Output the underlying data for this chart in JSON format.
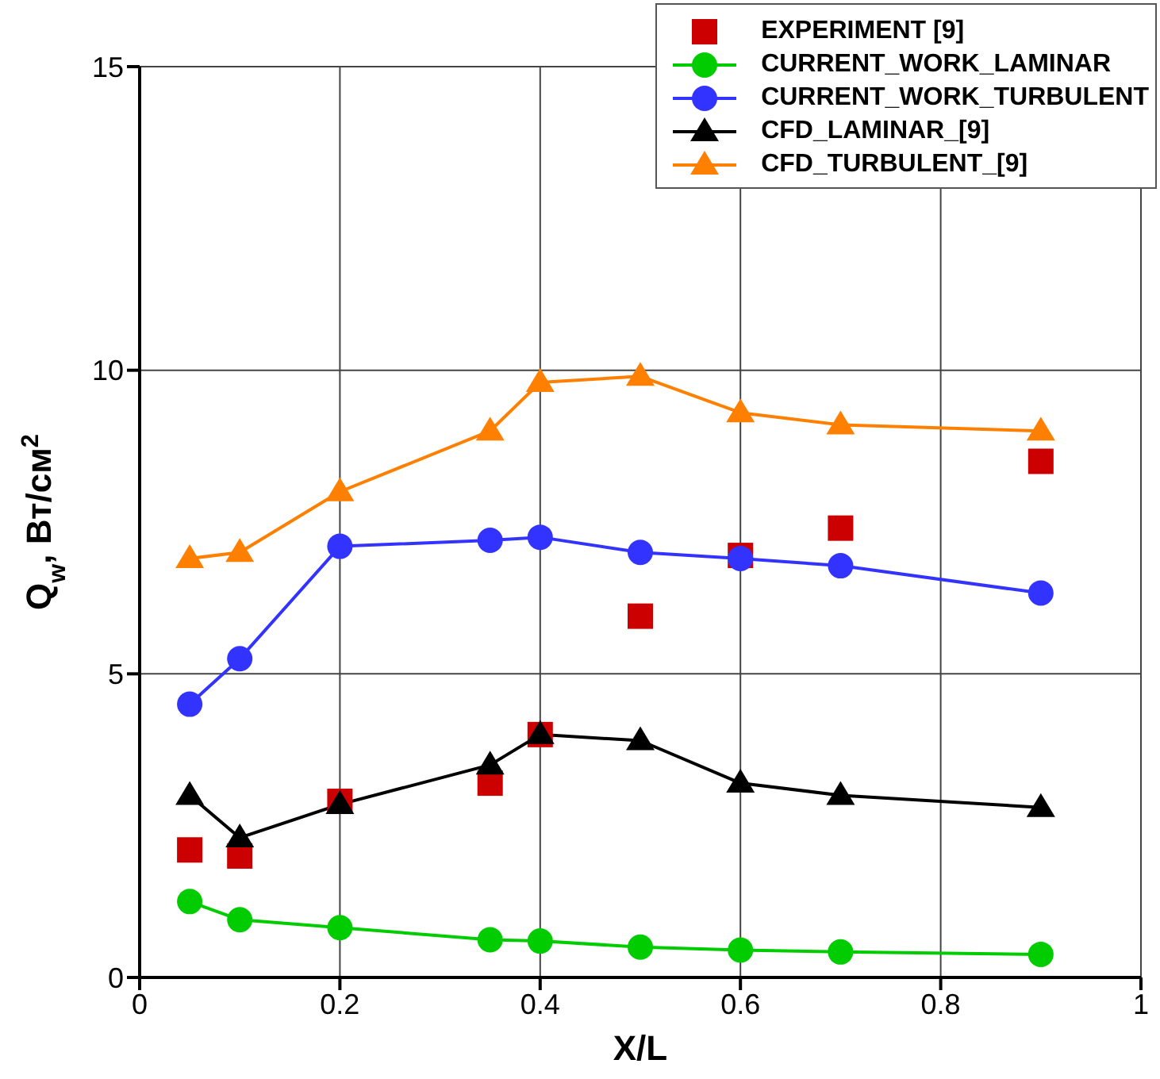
{
  "chart_data": {
    "type": "line",
    "xlabel": "X/L",
    "ylabel": "Q$_{w}$, Вт/см$^{2}$",
    "x": [
      0.05,
      0.1,
      0.2,
      0.35,
      0.4,
      0.5,
      0.6,
      0.7,
      0.9
    ],
    "xlim": [
      0,
      1
    ],
    "xticks": [
      0,
      0.2,
      0.4,
      0.6,
      0.8,
      1
    ],
    "ylim": [
      0,
      15
    ],
    "yticks": [
      0,
      5,
      10,
      15
    ],
    "grid": true,
    "legend": "top right",
    "series": [
      {
        "name": "EXPERIMENT [9]",
        "type": "scatter",
        "marker": "square",
        "color": "#cc0000",
        "values": [
          2.1,
          2.0,
          2.9,
          3.2,
          4.0,
          5.95,
          6.95,
          7.4,
          8.5
        ]
      },
      {
        "name": "CURRENT_WORK_LAMINAR",
        "marker": "circle",
        "color": "#00cc00",
        "values": [
          1.25,
          0.95,
          0.82,
          0.62,
          0.6,
          0.5,
          0.45,
          0.42,
          0.38
        ]
      },
      {
        "name": "CURRENT_WORK_TURBULENT",
        "marker": "circle",
        "color": "#3333ff",
        "values": [
          4.5,
          5.25,
          7.1,
          7.2,
          7.25,
          7.0,
          6.9,
          6.78,
          6.33
        ]
      },
      {
        "name": "CFD_LAMINAR_[9]",
        "marker": "triangle",
        "color": "#000000",
        "values": [
          3.0,
          2.3,
          2.85,
          3.5,
          4.0,
          3.9,
          3.2,
          3.0,
          2.8
        ]
      },
      {
        "name": "CFD_TURBULENT_[9]",
        "marker": "triangle",
        "color": "#ff8000",
        "values": [
          6.9,
          7.0,
          8.0,
          9.0,
          9.8,
          9.9,
          9.3,
          9.1,
          9.0
        ]
      }
    ]
  }
}
